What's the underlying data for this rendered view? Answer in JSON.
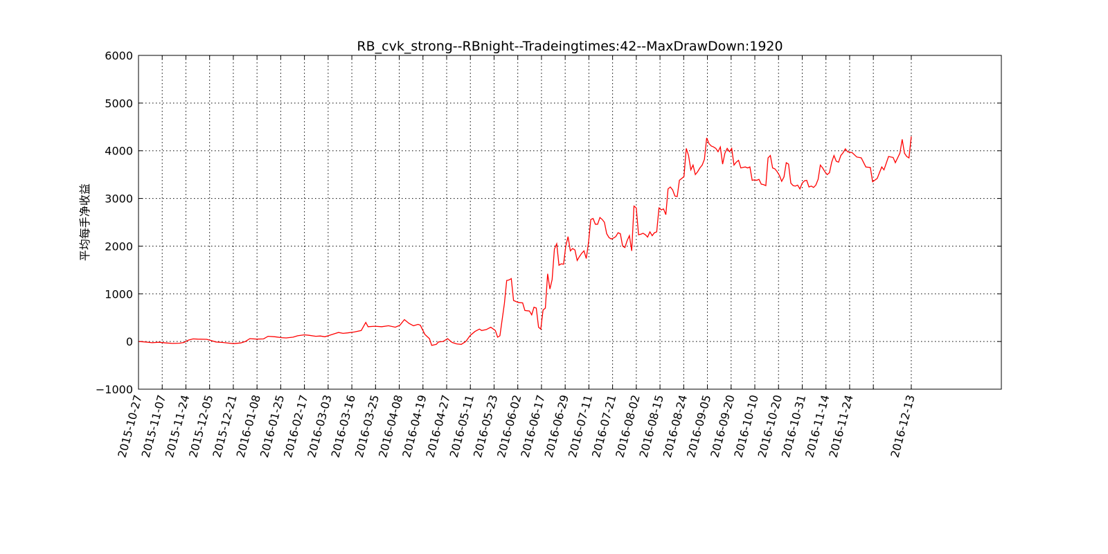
{
  "chart_data": {
    "type": "line",
    "title": "RB_cvk_strong--RBnight--Tradeingtimes:42--MaxDrawDown:1920",
    "xlabel": "",
    "ylabel": "平均每手净收益",
    "ylim": [
      -1000,
      6000
    ],
    "yticks": [
      -1000,
      0,
      1000,
      2000,
      3000,
      4000,
      5000,
      6000
    ],
    "ytick_labels": [
      "−1000",
      "0",
      "1000",
      "2000",
      "3000",
      "4000",
      "5000",
      "6000"
    ],
    "xlim": [
      0,
      340
    ],
    "xticks": [
      0,
      10,
      20,
      30,
      40,
      50,
      60,
      70,
      80,
      90,
      100,
      110,
      120,
      130,
      140,
      150,
      160,
      170,
      180,
      190,
      200,
      210,
      220,
      230,
      240,
      250,
      260,
      270,
      280,
      290,
      300,
      310,
      326
    ],
    "xtick_labels": [
      "2015-10-27",
      "2015-11-07",
      "2015-11-24",
      "2015-12-05",
      "2015-12-21",
      "2016-01-08",
      "2016-01-25",
      "2016-02-17",
      "2016-03-03",
      "2016-03-16",
      "2016-03-25",
      "2016-04-08",
      "2016-04-19",
      "2016-04-27",
      "2016-05-11",
      "2016-05-23",
      "2016-06-02",
      "2016-06-17",
      "2016-06-29",
      "2016-07-11",
      "2016-07-21",
      "2016-08-02",
      "2016-08-15",
      "2016-08-24",
      "2016-09-05",
      "2016-09-20",
      "2016-10-10",
      "2016-10-20",
      "2016-10-31",
      "2016-11-14",
      "2016-11-24",
      "",
      "2016-12-13"
    ],
    "grid": true,
    "series": [
      {
        "name": "",
        "color": "#ff0000",
        "points": [
          [
            0,
            0
          ],
          [
            3,
            -10
          ],
          [
            6,
            -25
          ],
          [
            9,
            -15
          ],
          [
            12,
            -30
          ],
          [
            15,
            -40
          ],
          [
            18,
            -35
          ],
          [
            20,
            -20
          ],
          [
            22,
            30
          ],
          [
            24,
            55
          ],
          [
            26,
            50
          ],
          [
            30,
            45
          ],
          [
            32,
            20
          ],
          [
            34,
            -10
          ],
          [
            37,
            -20
          ],
          [
            40,
            -35
          ],
          [
            42,
            -45
          ],
          [
            45,
            -30
          ],
          [
            47,
            0
          ],
          [
            49,
            60
          ],
          [
            52,
            50
          ],
          [
            55,
            55
          ],
          [
            57,
            110
          ],
          [
            60,
            100
          ],
          [
            63,
            80
          ],
          [
            65,
            75
          ],
          [
            68,
            90
          ],
          [
            70,
            120
          ],
          [
            73,
            140
          ],
          [
            75,
            130
          ],
          [
            78,
            110
          ],
          [
            80,
            115
          ],
          [
            82,
            100
          ],
          [
            84,
            130
          ],
          [
            86,
            160
          ],
          [
            88,
            190
          ],
          [
            90,
            170
          ],
          [
            92,
            180
          ],
          [
            95,
            200
          ],
          [
            98,
            230
          ],
          [
            100,
            400
          ],
          [
            101,
            310
          ],
          [
            104,
            320
          ],
          [
            107,
            310
          ],
          [
            110,
            330
          ],
          [
            113,
            300
          ],
          [
            115,
            340
          ],
          [
            117,
            460
          ],
          [
            119,
            380
          ],
          [
            121,
            330
          ],
          [
            123,
            360
          ],
          [
            124,
            340
          ],
          [
            126,
            150
          ],
          [
            128,
            60
          ],
          [
            129,
            -80
          ],
          [
            131,
            -60
          ],
          [
            132,
            -10
          ],
          [
            134,
            0
          ],
          [
            136,
            60
          ],
          [
            138,
            -20
          ],
          [
            140,
            -50
          ],
          [
            142,
            -60
          ],
          [
            144,
            0
          ],
          [
            146,
            130
          ],
          [
            148,
            210
          ],
          [
            150,
            260
          ],
          [
            151,
            230
          ],
          [
            153,
            250
          ],
          [
            155,
            300
          ],
          [
            157,
            230
          ],
          [
            158,
            90
          ],
          [
            159,
            120
          ],
          [
            161,
            800
          ],
          [
            162,
            1280
          ],
          [
            163,
            1290
          ],
          [
            164,
            1320
          ],
          [
            165,
            860
          ],
          [
            167,
            820
          ],
          [
            169,
            810
          ],
          [
            170,
            650
          ],
          [
            172,
            640
          ],
          [
            173,
            560
          ],
          [
            174,
            720
          ],
          [
            175,
            700
          ],
          [
            176,
            300
          ],
          [
            177,
            260
          ],
          [
            178,
            660
          ],
          [
            179,
            700
          ],
          [
            180,
            1420
          ],
          [
            181,
            1100
          ],
          [
            182,
            1300
          ],
          [
            183,
            1940
          ],
          [
            184,
            2050
          ],
          [
            185,
            1600
          ],
          [
            186,
            1630
          ],
          [
            187,
            1620
          ],
          [
            188,
            2000
          ],
          [
            189,
            2200
          ],
          [
            190,
            1900
          ],
          [
            191,
            1950
          ],
          [
            192,
            1920
          ],
          [
            193,
            1700
          ],
          [
            194,
            1780
          ],
          [
            195,
            1850
          ],
          [
            196,
            1900
          ],
          [
            197,
            1740
          ],
          [
            198,
            2080
          ],
          [
            199,
            2560
          ],
          [
            200,
            2580
          ],
          [
            201,
            2460
          ],
          [
            202,
            2460
          ],
          [
            203,
            2600
          ],
          [
            204,
            2560
          ],
          [
            205,
            2500
          ],
          [
            206,
            2260
          ],
          [
            207,
            2180
          ],
          [
            208,
            2150
          ],
          [
            209,
            2170
          ],
          [
            210,
            2200
          ],
          [
            211,
            2280
          ],
          [
            212,
            2260
          ],
          [
            213,
            2000
          ],
          [
            214,
            1970
          ],
          [
            215,
            2120
          ],
          [
            216,
            2220
          ],
          [
            217,
            1900
          ],
          [
            218,
            2840
          ],
          [
            219,
            2800
          ],
          [
            220,
            2240
          ],
          [
            221,
            2250
          ],
          [
            222,
            2270
          ],
          [
            223,
            2240
          ],
          [
            224,
            2190
          ],
          [
            225,
            2300
          ],
          [
            226,
            2220
          ],
          [
            227,
            2280
          ],
          [
            228,
            2300
          ],
          [
            229,
            2800
          ],
          [
            230,
            2760
          ],
          [
            231,
            2780
          ],
          [
            232,
            2660
          ],
          [
            233,
            3200
          ],
          [
            234,
            3240
          ],
          [
            235,
            3180
          ],
          [
            236,
            3050
          ],
          [
            237,
            3040
          ],
          [
            238,
            3380
          ],
          [
            239,
            3420
          ],
          [
            240,
            3460
          ],
          [
            241,
            4050
          ],
          [
            242,
            3900
          ],
          [
            243,
            3600
          ],
          [
            244,
            3700
          ],
          [
            245,
            3500
          ],
          [
            246,
            3560
          ],
          [
            247,
            3640
          ],
          [
            248,
            3700
          ],
          [
            249,
            3820
          ],
          [
            250,
            4270
          ],
          [
            251,
            4150
          ],
          [
            252,
            4100
          ],
          [
            253,
            4080
          ],
          [
            254,
            4050
          ],
          [
            255,
            3980
          ],
          [
            256,
            4080
          ],
          [
            257,
            3720
          ],
          [
            258,
            3950
          ],
          [
            259,
            4050
          ],
          [
            260,
            3980
          ],
          [
            261,
            4050
          ],
          [
            262,
            3700
          ],
          [
            263,
            3760
          ],
          [
            264,
            3800
          ],
          [
            265,
            3640
          ],
          [
            266,
            3650
          ],
          [
            267,
            3660
          ],
          [
            268,
            3640
          ],
          [
            269,
            3660
          ],
          [
            270,
            3380
          ],
          [
            271,
            3390
          ],
          [
            272,
            3380
          ],
          [
            273,
            3400
          ],
          [
            274,
            3300
          ],
          [
            275,
            3290
          ],
          [
            276,
            3270
          ],
          [
            277,
            3850
          ],
          [
            278,
            3900
          ],
          [
            279,
            3640
          ],
          [
            280,
            3620
          ],
          [
            281,
            3560
          ],
          [
            282,
            3480
          ],
          [
            283,
            3360
          ],
          [
            284,
            3450
          ],
          [
            285,
            3750
          ],
          [
            286,
            3720
          ],
          [
            287,
            3320
          ],
          [
            288,
            3270
          ],
          [
            289,
            3260
          ],
          [
            290,
            3280
          ],
          [
            291,
            3200
          ],
          [
            292,
            3320
          ],
          [
            293,
            3370
          ],
          [
            294,
            3380
          ],
          [
            295,
            3240
          ],
          [
            296,
            3260
          ],
          [
            297,
            3230
          ],
          [
            298,
            3280
          ],
          [
            299,
            3400
          ],
          [
            300,
            3700
          ],
          [
            301,
            3640
          ],
          [
            302,
            3560
          ],
          [
            303,
            3500
          ],
          [
            304,
            3540
          ],
          [
            305,
            3760
          ],
          [
            306,
            3900
          ],
          [
            307,
            3780
          ],
          [
            308,
            3760
          ],
          [
            309,
            3900
          ],
          [
            310,
            3960
          ]
        ]
      }
    ],
    "tail": [
      [
        310,
        3960
      ],
      [
        311,
        4040
      ],
      [
        312,
        3980
      ],
      [
        314,
        3960
      ],
      [
        316,
        3870
      ],
      [
        318,
        3850
      ],
      [
        320,
        3660
      ],
      [
        322,
        3650
      ],
      [
        323,
        3350
      ],
      [
        325,
        3420
      ],
      [
        327,
        3660
      ],
      [
        328,
        3600
      ],
      [
        330,
        3880
      ],
      [
        332,
        3860
      ],
      [
        333,
        3750
      ],
      [
        335,
        3950
      ],
      [
        336,
        4240
      ],
      [
        337,
        3950
      ],
      [
        338,
        3880
      ],
      [
        339,
        3850
      ],
      [
        340,
        4300
      ]
    ]
  }
}
